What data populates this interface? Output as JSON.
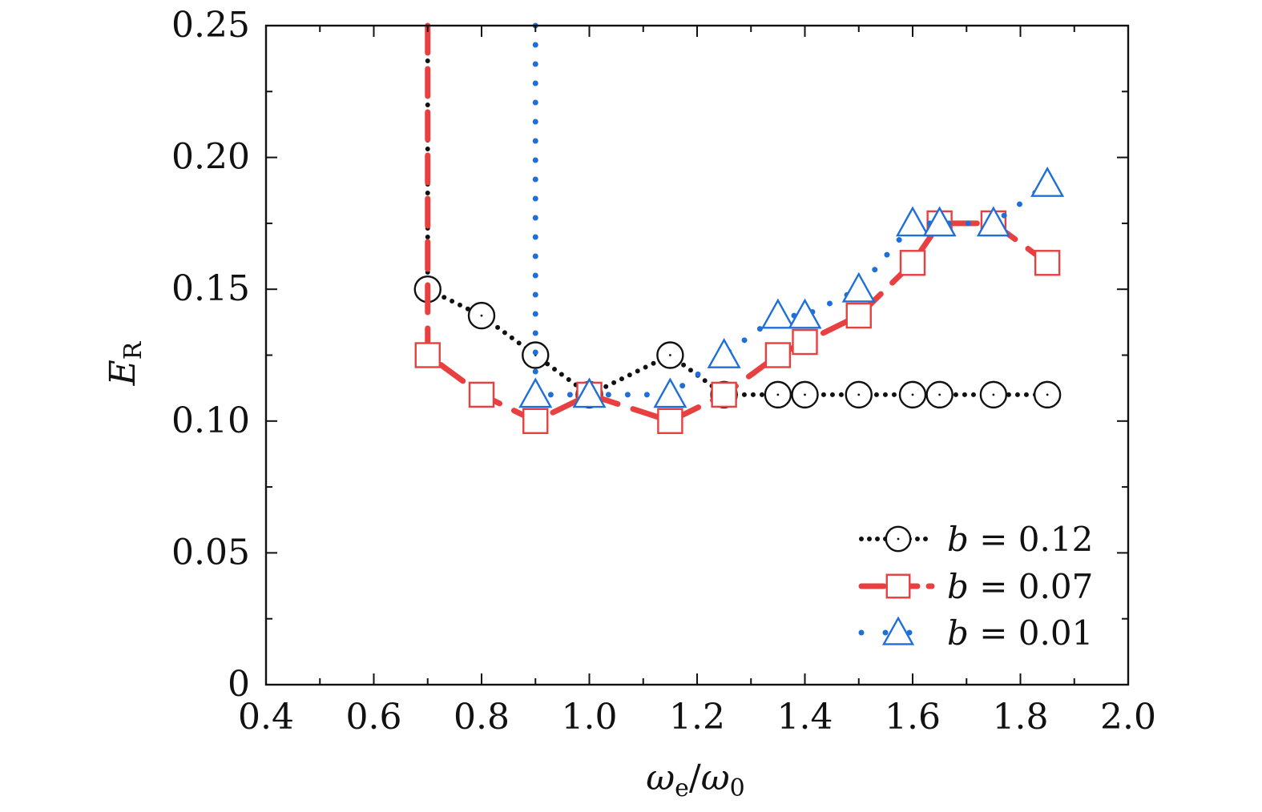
{
  "chart_data": {
    "type": "line",
    "xlabel": {
      "main": "ω",
      "sub": "e",
      "sep": "/",
      "main2": "ω",
      "sub2": "0"
    },
    "ylabel": {
      "main": "E",
      "sub": "R"
    },
    "xlim": [
      0.4,
      2.0
    ],
    "ylim": [
      0,
      0.25
    ],
    "x_ticks": [
      "0.4",
      "0.6",
      "0.8",
      "1.0",
      "1.2",
      "1.4",
      "1.6",
      "1.8",
      "2.0"
    ],
    "y_ticks": [
      "0",
      "0.05",
      "0.10",
      "0.15",
      "0.20",
      "0.25"
    ],
    "grid": false,
    "legend_position": "bottom-right",
    "series": [
      {
        "name": "b = 0.12",
        "legend_var": "b",
        "legend_value": "= 0.12",
        "color": "#111111",
        "marker": "circle",
        "line": "dotted",
        "vertical_from": 0.25,
        "x": [
          0.7,
          0.8,
          0.9,
          1.0,
          1.15,
          1.25,
          1.35,
          1.4,
          1.5,
          1.6,
          1.65,
          1.75,
          1.85
        ],
        "y": [
          0.15,
          0.14,
          0.125,
          0.11,
          0.125,
          0.11,
          0.11,
          0.11,
          0.11,
          0.11,
          0.11,
          0.11,
          0.11
        ]
      },
      {
        "name": "b = 0.07",
        "legend_var": "b",
        "legend_value": "= 0.07",
        "color": "#e84040",
        "marker": "square",
        "line": "dashed",
        "vertical_from": 0.25,
        "x": [
          0.7,
          0.8,
          0.9,
          1.0,
          1.15,
          1.25,
          1.35,
          1.4,
          1.5,
          1.6,
          1.65,
          1.75,
          1.85
        ],
        "y": [
          0.125,
          0.11,
          0.1,
          0.11,
          0.1,
          0.11,
          0.125,
          0.13,
          0.14,
          0.16,
          0.175,
          0.175,
          0.16
        ]
      },
      {
        "name": "b = 0.01",
        "legend_var": "b",
        "legend_value": "= 0.01",
        "color": "#1f6fd8",
        "marker": "triangle",
        "line": "dotdash",
        "vertical_from": 0.25,
        "x": [
          0.9,
          1.0,
          1.15,
          1.25,
          1.35,
          1.4,
          1.5,
          1.6,
          1.65,
          1.75,
          1.85
        ],
        "y": [
          0.11,
          0.11,
          0.11,
          0.125,
          0.14,
          0.14,
          0.15,
          0.175,
          0.175,
          0.175,
          0.19
        ]
      }
    ]
  }
}
